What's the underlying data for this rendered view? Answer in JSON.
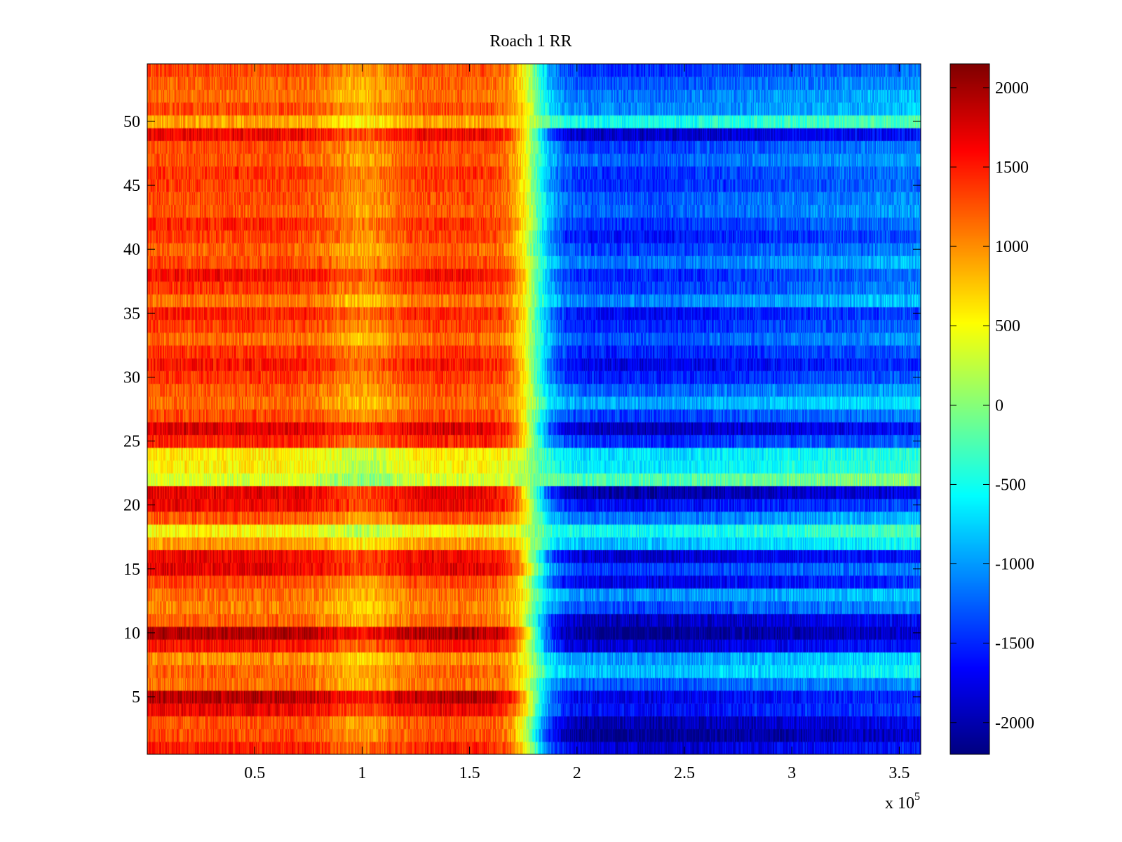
{
  "chart_data": {
    "type": "heatmap",
    "title": "Roach 1 RR",
    "xlabel": "",
    "ylabel": "",
    "x_multiplier_label": "x 10",
    "x_multiplier_exponent": "5",
    "xlim": [
      0,
      360000
    ],
    "ylim": [
      0.5,
      54.5
    ],
    "x_ticks": [
      50000,
      100000,
      150000,
      200000,
      250000,
      300000,
      350000
    ],
    "x_tick_labels": [
      "0.5",
      "1",
      "1.5",
      "2",
      "2.5",
      "3",
      "3.5"
    ],
    "y_ticks": [
      5,
      10,
      15,
      20,
      25,
      30,
      35,
      40,
      45,
      50
    ],
    "y_tick_labels": [
      "5",
      "10",
      "15",
      "20",
      "25",
      "30",
      "35",
      "40",
      "45",
      "50"
    ],
    "colormap": "jet",
    "clim": [
      -2200,
      2150
    ],
    "colorbar_ticks": [
      2000,
      1500,
      1000,
      500,
      0,
      -500,
      -1000,
      -1500,
      -2000
    ],
    "colorbar_tick_labels": [
      "2000",
      "1500",
      "1000",
      "500",
      "0",
      "-500",
      "-1000",
      "-1500",
      "-2000"
    ],
    "colorbar_position": "right",
    "rows": 54,
    "transition_x": 180000,
    "left_region_mean": 1300,
    "right_region_mean": -1400,
    "row_offsets_left": [
      200,
      0,
      -50,
      350,
      600,
      -150,
      -100,
      -300,
      250,
      650,
      -100,
      -250,
      -150,
      0,
      400,
      350,
      -350,
      -750,
      -50,
      350,
      400,
      -950,
      -750,
      -700,
      200,
      450,
      0,
      -150,
      -50,
      100,
      250,
      100,
      -150,
      50,
      200,
      -200,
      100,
      300,
      0,
      -100,
      50,
      150,
      -50,
      0,
      50,
      100,
      -50,
      0,
      350,
      -400,
      0,
      -150,
      -100,
      0
    ],
    "row_offsets_right": [
      -450,
      -750,
      -600,
      -250,
      -350,
      100,
      550,
      400,
      -450,
      -750,
      -550,
      50,
      350,
      -350,
      0,
      -450,
      550,
      850,
      250,
      -250,
      -650,
      1150,
      750,
      700,
      -100,
      -550,
      0,
      450,
      150,
      -150,
      -350,
      -150,
      100,
      -100,
      -250,
      300,
      0,
      -100,
      250,
      0,
      -200,
      -50,
      150,
      100,
      -100,
      -50,
      150,
      0,
      -500,
      900,
      300,
      250,
      100,
      -50
    ],
    "mid_dip_x": 100000
  }
}
